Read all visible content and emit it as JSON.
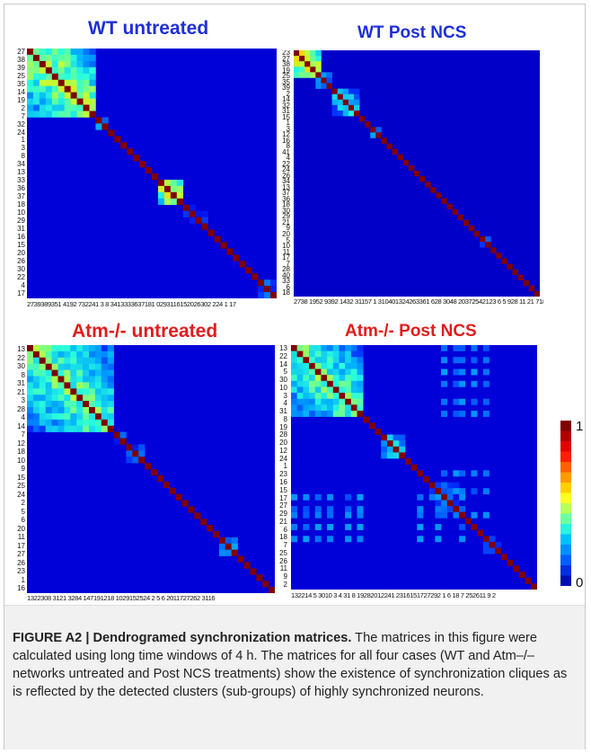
{
  "figure": {
    "caption_label": "FIGURE A2 | Dendrogramed synchronization matrices.",
    "caption_text": " The matrices in this figure were calculated using long time windows of 4 h. The matrices for all four cases (WT and Atm–/– networks untreated and Post NCS treatments) show the existence of synchronization cliques as is reflected by the detected clusters (sub-groups) of highly synchronized neurons."
  },
  "colorbar": {
    "max_label": "1",
    "min_label": "0",
    "colors": [
      "#800000",
      "#b00000",
      "#e00000",
      "#ff2000",
      "#ff6000",
      "#ff9a00",
      "#ffd000",
      "#ffff20",
      "#b8ff60",
      "#70ffa0",
      "#30f0e0",
      "#00c0ff",
      "#0090ff",
      "#0060ff",
      "#0030e0",
      "#0010b0"
    ]
  },
  "chart_data": [
    {
      "type": "heatmap",
      "title": "WT untreated",
      "title_color": "#1e2fd6",
      "n": 40,
      "row_labels": [
        "27",
        "38",
        "39",
        "25",
        "35",
        "14",
        "19",
        "2",
        "7",
        "32",
        "24",
        "1",
        "3",
        "8",
        "34",
        "13",
        "33",
        "36",
        "37",
        "18",
        "10",
        "29",
        "31",
        "16",
        "15",
        "20",
        "26",
        "30",
        "22",
        "4",
        "17"
      ],
      "col_labels_text": "2739389351 4192 732241 3 8 3413333637181 0293116152026302 224 1 17",
      "clusters": [
        {
          "start": 0,
          "size": 11,
          "strength": 0.62
        },
        {
          "start": 11,
          "size": 2,
          "strength": 0.45
        },
        {
          "start": 21,
          "size": 4,
          "strength": 0.72
        },
        {
          "start": 25,
          "size": 4,
          "strength": 0.22
        },
        {
          "start": 37,
          "size": 3,
          "strength": 0.3
        }
      ],
      "background": 0.1,
      "seed": 11
    },
    {
      "type": "heatmap",
      "title": "WT Post NCS",
      "title_color": "#1e2fd6",
      "n": 45,
      "row_labels": [
        "23",
        "27",
        "38",
        "19",
        "25",
        "35",
        "39",
        "2",
        "14",
        "32",
        "31",
        "15",
        "1",
        "3",
        "12",
        "16",
        "8",
        "41",
        "4",
        "22",
        "24",
        "26",
        "34",
        "13",
        "37",
        "36",
        "18",
        "30",
        "29",
        "21",
        "9",
        "20",
        "5",
        "10",
        "11",
        "17",
        "7",
        "28",
        "40",
        "33",
        "6",
        "18"
      ],
      "col_labels_text": "2738 1952 9392 1432 31157 1 310401324263361 628 3048 20372542123 6 5 928 11 21 718",
      "clusters": [
        {
          "start": 0,
          "size": 5,
          "strength": 0.75
        },
        {
          "start": 4,
          "size": 3,
          "strength": 0.4
        },
        {
          "start": 7,
          "size": 5,
          "strength": 0.45
        },
        {
          "start": 14,
          "size": 2,
          "strength": 0.38
        },
        {
          "start": 34,
          "size": 2,
          "strength": 0.35
        }
      ],
      "background": 0.08,
      "seed": 23
    },
    {
      "type": "heatmap",
      "title": "Atm-/- untreated",
      "title_color": "#e01d1d",
      "n": 40,
      "row_labels": [
        "13",
        "22",
        "30",
        "8",
        "31",
        "21",
        "3",
        "28",
        "4",
        "14",
        "7",
        "12",
        "18",
        "10",
        "9",
        "15",
        "25",
        "24",
        "2",
        "5",
        "6",
        "20",
        "11",
        "17",
        "27",
        "26",
        "23",
        "1",
        "16"
      ],
      "col_labels_text": "1322308 3121 3284 147191218 1029152524 2 5 6 2011727262 3116",
      "clusters": [
        {
          "start": 0,
          "size": 14,
          "strength": 0.55
        },
        {
          "start": 14,
          "size": 2,
          "strength": 0.3
        },
        {
          "start": 16,
          "size": 3,
          "strength": 0.3
        },
        {
          "start": 31,
          "size": 3,
          "strength": 0.4
        }
      ],
      "background": 0.1,
      "seed": 37
    },
    {
      "type": "heatmap",
      "title": "Atm-/- Post NCS",
      "title_color": "#e01d1d",
      "n": 41,
      "row_labels": [
        "13",
        "22",
        "14",
        "5",
        "30",
        "10",
        "3",
        "4",
        "31",
        "8",
        "19",
        "28",
        "20",
        "12",
        "24",
        "1",
        "23",
        "16",
        "15",
        "17",
        "27",
        "29",
        "21",
        "6",
        "18",
        "7",
        "25",
        "26",
        "11",
        "9",
        "2"
      ],
      "col_labels_text": "132214 5 3010 3 4 31 8 19282012241 2316151727292 1 6 18 7 252611 9 2",
      "clusters": [
        {
          "start": 0,
          "size": 12,
          "strength": 0.55
        },
        {
          "start": 15,
          "size": 4,
          "strength": 0.45
        },
        {
          "start": 23,
          "size": 5,
          "strength": 0.3
        },
        {
          "start": 32,
          "size": 3,
          "strength": 0.3
        }
      ],
      "bands": {
        "rows": [
          25,
          27,
          28,
          30,
          32
        ],
        "cols": [
          0,
          2,
          4,
          6,
          9,
          11,
          21,
          24,
          28
        ],
        "strength": 0.32
      },
      "background": 0.1,
      "seed": 53
    }
  ]
}
